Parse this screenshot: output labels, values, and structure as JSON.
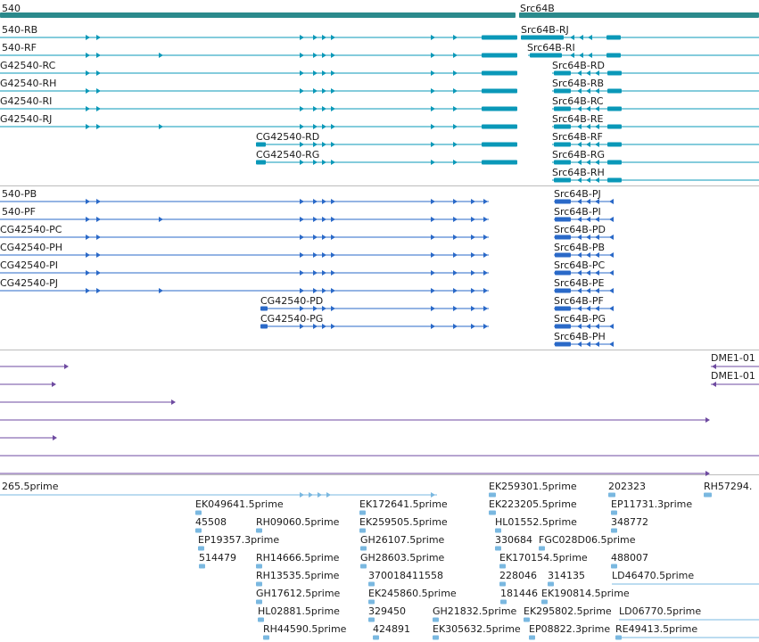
{
  "tracks": {
    "genes": {
      "labels": [
        "540",
        "Src64B"
      ]
    },
    "transcripts": {
      "labels": [
        "540-RB",
        "540-RF",
        "G42540-RC",
        "G42540-RH",
        "G42540-RI",
        "G42540-RJ",
        "CG42540-RD",
        "CG42540-RG",
        "Src64B-RJ",
        "Src64B-RI",
        "Src64B-RD",
        "Src64B-RB",
        "Src64B-RC",
        "Src64B-RE",
        "Src64B-RF",
        "Src64B-RG",
        "Src64B-RH"
      ]
    },
    "proteins": {
      "labels": [
        "540-PB",
        "540-PF",
        "CG42540-PC",
        "CG42540-PH",
        "CG42540-PI",
        "CG42540-PJ",
        "CG42540-PD",
        "CG42540-PG",
        "Src64B-PJ",
        "Src64B-PI",
        "Src64B-PD",
        "Src64B-PB",
        "Src64B-PC",
        "Src64B-PE",
        "Src64B-PF",
        "Src64B-PG",
        "Src64B-PH"
      ]
    },
    "dme": {
      "labels": [
        "DME1-01",
        "DME1-01"
      ]
    },
    "ests": {
      "labels": [
        "265.5prime",
        "EK259301.5prime",
        "202323",
        "RH57294.",
        "EK049641.5prime",
        "EK172641.5prime",
        "EK223205.5prime",
        "EP11731.3prime",
        "45508",
        "RH09060.5prime",
        "EK259505.5prime",
        "HL01552.5prime",
        "348772",
        "EP19357.3prime",
        "GH26107.5prime",
        "330684",
        "FGC028D06.5prime",
        "514479",
        "RH14666.5prime",
        "GH28603.5prime",
        "EK170154.5prime",
        "488007",
        "RH13535.5prime",
        "370018411558",
        "228046",
        "314135",
        "LD46470.5prime",
        "GH17612.5prime",
        "EK245860.5prime",
        "181446",
        "EK190814.5prime",
        "HL02881.5prime",
        "329450",
        "GH21832.5prime",
        "EK295802.5prime",
        "LD06770.5prime",
        "RH44590.5prime",
        "424891",
        "EK305632.5prime",
        "EP08822.3prime",
        "RE49413.5prime"
      ]
    }
  },
  "colors": {
    "gene": "#2b8a8c",
    "transcript": "#0a98b8",
    "protein": "#2a69c8",
    "dme": "#6e4aa0",
    "est": "#7ab8e0",
    "separator": "#bcbcbc"
  }
}
